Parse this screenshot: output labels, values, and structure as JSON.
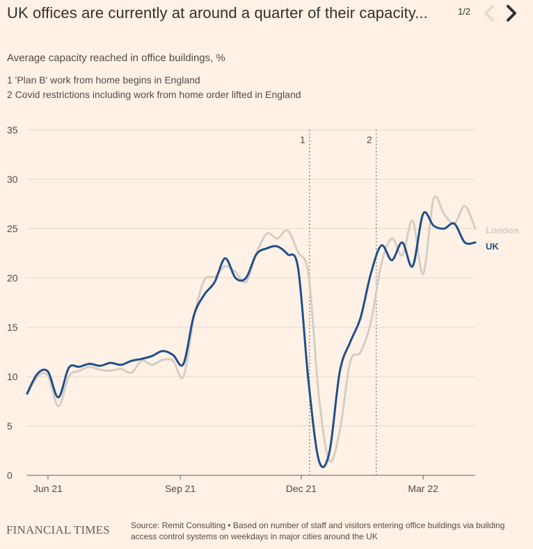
{
  "header": {
    "title": "UK offices are currently at around a quarter of their capacity...",
    "pager": "1/2"
  },
  "subtitle": "Average capacity reached in office buildings, %",
  "notes": [
    "1 'Plan B' work from home begins in England",
    "2 Covid restrictions including work from home order lifted in England"
  ],
  "footer": {
    "logo": "FINANCIAL TIMES",
    "source": "Source: Remit Consulting • Based on number of staff and visitors entering office buildings via building access control systems on weekdays in major cities around the UK"
  },
  "colors": {
    "background": "#fff1e5",
    "uk": "#1f4e8c",
    "london": "#d6cdc3",
    "grid": "#e3d8cd",
    "text": "#4f4b48"
  },
  "chart_data": {
    "type": "line",
    "title": "UK offices are currently at around a quarter of their capacity...",
    "ylabel": "Average capacity reached in office buildings, %",
    "ylim": [
      0,
      35
    ],
    "yticks": [
      0,
      5,
      10,
      15,
      20,
      25,
      30,
      35
    ],
    "xlim": [
      0,
      43
    ],
    "xunit": "weeks from 31 May 2021",
    "xticks": [
      {
        "label": "Jun 21",
        "x": 2
      },
      {
        "label": "Sep 21",
        "x": 14.7
      },
      {
        "label": "Dec 21",
        "x": 26.3
      },
      {
        "label": "Mar 22",
        "x": 38
      }
    ],
    "annotations": [
      {
        "label": "1",
        "x": 27.1
      },
      {
        "label": "2",
        "x": 33.5
      }
    ],
    "x": [
      0,
      1,
      2,
      3,
      4,
      5,
      6,
      7,
      8,
      9,
      10,
      11,
      12,
      13,
      14,
      15,
      16,
      17,
      18,
      19,
      20,
      21,
      22,
      23,
      24,
      25,
      26,
      27,
      28,
      29,
      30,
      31,
      32,
      33,
      34,
      35,
      36,
      37,
      38,
      39,
      40,
      41,
      42,
      43
    ],
    "series": [
      {
        "name": "London",
        "values": [
          8.2,
          10.0,
          10.1,
          7.0,
          10.0,
          10.6,
          11.0,
          10.7,
          10.6,
          10.8,
          10.4,
          11.6,
          11.2,
          11.7,
          11.6,
          10.0,
          16.0,
          19.8,
          20.1,
          21.2,
          20.6,
          19.6,
          22.5,
          24.5,
          24.0,
          24.8,
          22.6,
          20.3,
          8.0,
          1.5,
          4.5,
          11.5,
          12.5,
          15.6,
          21.5,
          24.0,
          22.3,
          25.8,
          20.4,
          28.0,
          26.5,
          25.5,
          27.3,
          25.0
        ]
      },
      {
        "name": "UK",
        "values": [
          8.3,
          10.3,
          10.5,
          7.9,
          10.9,
          11.0,
          11.3,
          11.1,
          11.4,
          11.2,
          11.6,
          11.8,
          12.1,
          12.6,
          12.2,
          11.3,
          16.2,
          18.3,
          19.6,
          22.0,
          20.0,
          20.0,
          22.4,
          23.0,
          23.2,
          22.4,
          21.0,
          9.5,
          1.5,
          2.3,
          10.5,
          13.5,
          16.0,
          20.5,
          23.3,
          21.8,
          23.6,
          21.2,
          26.5,
          25.3,
          25.0,
          25.5,
          23.6,
          23.6
        ]
      }
    ],
    "series_labels": [
      "London",
      "UK"
    ]
  }
}
